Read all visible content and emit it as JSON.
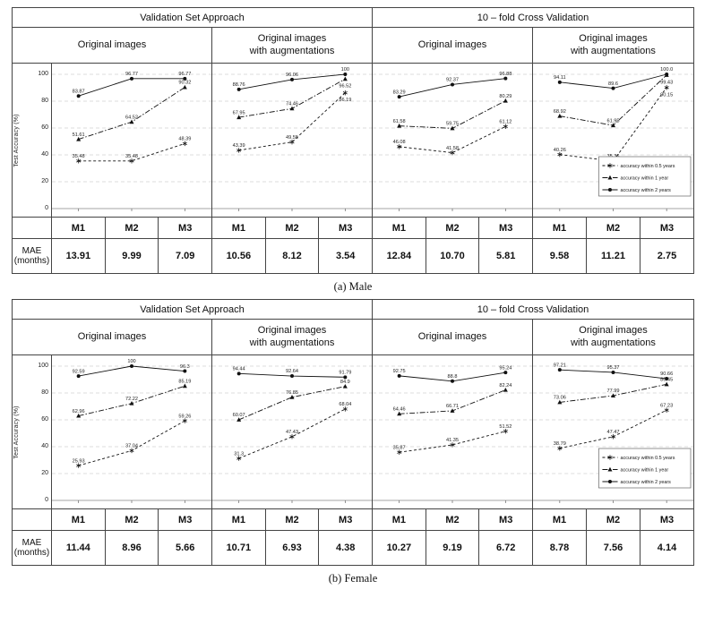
{
  "figure": {
    "captions": [
      "(a) Male",
      "(b) Female"
    ],
    "group_headers": [
      "Validation Set Approach",
      "10 – fold Cross Validation"
    ],
    "sub_headers": [
      "Original images",
      "Original images\nwith augmentations"
    ],
    "ylabel": "Test Accuracy (%)",
    "yticks": [
      0,
      20,
      40,
      60,
      80,
      100
    ],
    "categories": [
      "M1",
      "M2",
      "M3"
    ],
    "mae_label": "MAE\n(months)",
    "legend": [
      "accuracy within 0.5 years",
      "accuracy within 1 year",
      "accuracy within 2 years"
    ]
  },
  "chart_data": [
    {
      "type": "line",
      "panel": "Male",
      "approach": "Validation Set Approach",
      "image_set": "Original images",
      "categories": [
        "M1",
        "M2",
        "M3"
      ],
      "ylim": [
        0,
        100
      ],
      "series": [
        {
          "name": "accuracy within 0.5 years",
          "values": [
            35.48,
            35.48,
            48.39
          ]
        },
        {
          "name": "accuracy within 1 year",
          "values": [
            51.61,
            64.52,
            90.32
          ]
        },
        {
          "name": "accuracy within 2 years",
          "values": [
            83.87,
            96.77,
            96.77
          ]
        }
      ],
      "mae_months": [
        "13.91",
        "9.99",
        "7.09"
      ]
    },
    {
      "type": "line",
      "panel": "Male",
      "approach": "Validation Set Approach",
      "image_set": "Original images with augmentations",
      "categories": [
        "M1",
        "M2",
        "M3"
      ],
      "ylim": [
        0,
        100
      ],
      "series": [
        {
          "name": "accuracy within 0.5 years",
          "values": [
            43.39,
            49.55,
            86.19
          ]
        },
        {
          "name": "accuracy within 1 year",
          "values": [
            67.95,
            74.46,
            96.52
          ]
        },
        {
          "name": "accuracy within 2 years",
          "values": [
            88.76,
            96.06,
            100
          ],
          "labels": [
            "88.76",
            "96.06",
            "100"
          ]
        }
      ],
      "mae_months": [
        "10.56",
        "8.12",
        "3.54"
      ]
    },
    {
      "type": "line",
      "panel": "Male",
      "approach": "10 – fold Cross Validation",
      "image_set": "Original images",
      "categories": [
        "M1",
        "M2",
        "M3"
      ],
      "ylim": [
        0,
        100
      ],
      "series": [
        {
          "name": "accuracy within 0.5 years",
          "values": [
            46.08,
            41.58,
            61.12
          ]
        },
        {
          "name": "accuracy within 1 year",
          "values": [
            61.58,
            59.75,
            80.29
          ]
        },
        {
          "name": "accuracy within 2 years",
          "values": [
            83.29,
            92.37,
            96.88
          ]
        }
      ],
      "mae_months": [
        "12.84",
        "10.70",
        "5.81"
      ]
    },
    {
      "type": "line",
      "panel": "Male",
      "approach": "10 – fold Cross Validation",
      "image_set": "Original images with augmentations",
      "categories": [
        "M1",
        "M2",
        "M3"
      ],
      "ylim": [
        0,
        100
      ],
      "series": [
        {
          "name": "accuracy within 0.5 years",
          "values": [
            40.26,
            35.36,
            90.15
          ]
        },
        {
          "name": "accuracy within 1 year",
          "values": [
            68.92,
            61.95,
            99.43
          ]
        },
        {
          "name": "accuracy within 2 years",
          "values": [
            94.11,
            89.6,
            100
          ],
          "labels": [
            "94.11",
            "89.6",
            "100.0"
          ]
        }
      ],
      "mae_months": [
        "9.58",
        "11.21",
        "2.75"
      ]
    },
    {
      "type": "line",
      "panel": "Female",
      "approach": "Validation Set Approach",
      "image_set": "Original images",
      "categories": [
        "M1",
        "M2",
        "M3"
      ],
      "ylim": [
        0,
        100
      ],
      "series": [
        {
          "name": "accuracy within 0.5 years",
          "values": [
            25.93,
            37.04,
            59.26
          ]
        },
        {
          "name": "accuracy within 1 year",
          "values": [
            62.96,
            72.22,
            85.19
          ]
        },
        {
          "name": "accuracy within 2 years",
          "values": [
            92.59,
            100,
            96.3
          ],
          "labels": [
            "92.59",
            "100",
            "96.3"
          ]
        }
      ],
      "mae_months": [
        "11.44",
        "8.96",
        "5.66"
      ]
    },
    {
      "type": "line",
      "panel": "Female",
      "approach": "Validation Set Approach",
      "image_set": "Original images with augmentations",
      "categories": [
        "M1",
        "M2",
        "M3"
      ],
      "ylim": [
        0,
        100
      ],
      "series": [
        {
          "name": "accuracy within 0.5 years",
          "values": [
            31.3,
            47.43,
            68.04
          ]
        },
        {
          "name": "accuracy within 1 year",
          "values": [
            60.07,
            76.85,
            84.9
          ]
        },
        {
          "name": "accuracy within 2 years",
          "values": [
            94.44,
            92.64,
            91.79
          ]
        }
      ],
      "mae_months": [
        "10.71",
        "6.93",
        "4.38"
      ]
    },
    {
      "type": "line",
      "panel": "Female",
      "approach": "10 – fold Cross Validation",
      "image_set": "Original images",
      "categories": [
        "M1",
        "M2",
        "M3"
      ],
      "ylim": [
        0,
        100
      ],
      "series": [
        {
          "name": "accuracy within 0.5 years",
          "values": [
            35.87,
            41.35,
            51.52
          ]
        },
        {
          "name": "accuracy within 1 year",
          "values": [
            64.46,
            66.71,
            82.24
          ]
        },
        {
          "name": "accuracy within 2 years",
          "values": [
            92.75,
            88.8,
            95.24
          ]
        }
      ],
      "mae_months": [
        "10.27",
        "9.19",
        "6.72"
      ]
    },
    {
      "type": "line",
      "panel": "Female",
      "approach": "10 – fold Cross Validation",
      "image_set": "Original images with augmentations",
      "categories": [
        "M1",
        "M2",
        "M3"
      ],
      "ylim": [
        0,
        100
      ],
      "series": [
        {
          "name": "accuracy within 0.5 years",
          "values": [
            38.79,
            47.47,
            67.23
          ]
        },
        {
          "name": "accuracy within 1 year",
          "values": [
            73.06,
            77.99,
            86.45
          ]
        },
        {
          "name": "accuracy within 2 years",
          "values": [
            97.21,
            95.37,
            90.66
          ]
        }
      ],
      "mae_months": [
        "8.78",
        "7.56",
        "4.14"
      ]
    }
  ]
}
